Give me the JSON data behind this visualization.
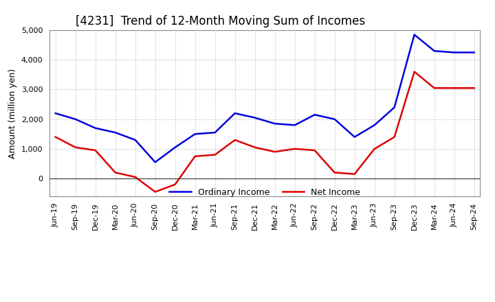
{
  "title": "[4231]  Trend of 12-Month Moving Sum of Incomes",
  "ylabel": "Amount (million yen)",
  "x_labels": [
    "Jun-19",
    "Sep-19",
    "Dec-19",
    "Mar-20",
    "Jun-20",
    "Sep-20",
    "Dec-20",
    "Mar-21",
    "Jun-21",
    "Sep-21",
    "Dec-21",
    "Mar-22",
    "Jun-22",
    "Sep-22",
    "Dec-22",
    "Mar-23",
    "Jun-23",
    "Sep-23",
    "Dec-23",
    "Mar-24",
    "Jun-24",
    "Sep-24"
  ],
  "ordinary_income": [
    2200,
    2000,
    1700,
    1550,
    1300,
    550,
    1050,
    1500,
    1550,
    2200,
    2050,
    1850,
    1800,
    2150,
    2000,
    1400,
    1800,
    2400,
    4850,
    4300,
    4250,
    4250
  ],
  "net_income": [
    1400,
    1050,
    950,
    200,
    50,
    -450,
    -200,
    750,
    800,
    1300,
    1050,
    900,
    1000,
    950,
    200,
    150,
    1000,
    1400,
    3600,
    3050,
    3050,
    3050
  ],
  "ordinary_color": "#0000dd",
  "net_color": "#dd0000",
  "ylim_min": -600,
  "ylim_max": 5000,
  "yticks": [
    0,
    1000,
    2000,
    3000,
    4000,
    5000
  ],
  "bg_color": "#ffffff",
  "plot_bg_color": "#ffffff",
  "grid_color": "#999999",
  "line_width": 1.8,
  "title_fontsize": 12,
  "axis_label_fontsize": 9,
  "tick_fontsize": 8,
  "legend_fontsize": 9
}
